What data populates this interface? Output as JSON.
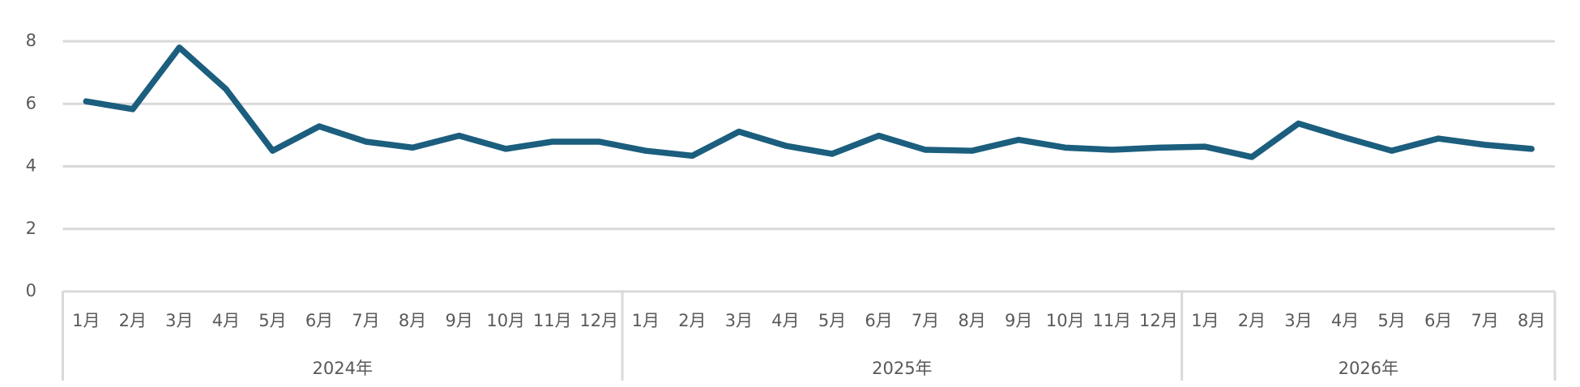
{
  "chart_data": {
    "type": "line",
    "groups": [
      {
        "label": "2024年",
        "categories": [
          "1月",
          "2月",
          "3月",
          "4月",
          "5月",
          "6月",
          "7月",
          "8月",
          "9月",
          "10月",
          "11月",
          "12月"
        ]
      },
      {
        "label": "2025年",
        "categories": [
          "1月",
          "2月",
          "3月",
          "4月",
          "5月",
          "6月",
          "7月",
          "8月",
          "9月",
          "10月",
          "11月",
          "12月"
        ]
      },
      {
        "label": "2026年",
        "categories": [
          "1月",
          "2月",
          "3月",
          "4月",
          "5月",
          "6月",
          "7月",
          "8月"
        ]
      }
    ],
    "values": [
      6.08,
      5.83,
      7.8,
      6.47,
      4.5,
      5.28,
      4.79,
      4.6,
      4.98,
      4.56,
      4.79,
      4.79,
      4.5,
      4.34,
      5.11,
      4.66,
      4.4,
      4.98,
      4.53,
      4.5,
      4.85,
      4.6,
      4.53,
      4.6,
      4.63,
      4.3,
      5.37,
      4.92,
      4.5,
      4.89,
      4.69,
      4.56
    ],
    "color": "#1b5e7e",
    "ylim": [
      0,
      8
    ],
    "yticks": [
      0,
      2,
      4,
      6,
      8
    ],
    "grid": true
  }
}
